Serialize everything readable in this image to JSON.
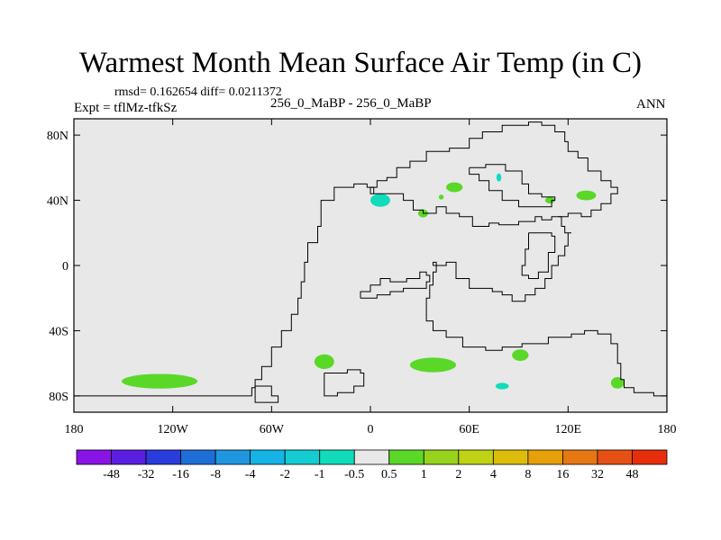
{
  "header": {
    "title": "Warmest Month Mean Surface Air Temp (in C)",
    "stats": "rmsd= 0.162654 diff= 0.0211372",
    "experiment": "Expt = tflMz-tfkSz",
    "subtitle": "256_0_MaBP - 256_0_MaBP",
    "season": "ANN"
  },
  "chart_data": {
    "type": "heatmap",
    "title": "Warmest Month Mean Surface Air Temp (in C)",
    "subtitle": "256_0_MaBP - 256_0_MaBP",
    "projection": "cylindrical equidistant",
    "xlim": [
      -180,
      180
    ],
    "ylim": [
      -90,
      90
    ],
    "x_ticks": [
      {
        "value": -180,
        "label": "180"
      },
      {
        "value": -120,
        "label": "120W"
      },
      {
        "value": -60,
        "label": "60W"
      },
      {
        "value": 0,
        "label": "0"
      },
      {
        "value": 60,
        "label": "60E"
      },
      {
        "value": 120,
        "label": "120E"
      },
      {
        "value": 180,
        "label": "180"
      }
    ],
    "y_ticks": [
      {
        "value": 80,
        "label": "80N"
      },
      {
        "value": 40,
        "label": "40N"
      },
      {
        "value": 0,
        "label": "0"
      },
      {
        "value": -40,
        "label": "40S"
      },
      {
        "value": -80,
        "label": "80S"
      }
    ],
    "background_color": "#e8e8e8",
    "colorbar": {
      "labels": [
        "-48",
        "-32",
        "-16",
        "-8",
        "-4",
        "-2",
        "-1",
        "-0.5",
        "0.5",
        "1",
        "2",
        "4",
        "8",
        "16",
        "32",
        "48"
      ],
      "colors": [
        "#8a14e6",
        "#5a1ee0",
        "#2a3cdc",
        "#1e6ed8",
        "#1e96e0",
        "#14b4e6",
        "#14ccd2",
        "#10dcbc",
        "#e8e8e8",
        "#5ad828",
        "#96d21e",
        "#c0d214",
        "#dcbe0a",
        "#e6a00a",
        "#e67814",
        "#e65014",
        "#e62e0a"
      ]
    },
    "anomalies": [
      {
        "name": "south-pacific",
        "lon": -128,
        "lat": -71,
        "rlon": 23,
        "rlat": 4.5,
        "color": "#5ad828"
      },
      {
        "name": "south-atlantic-west",
        "lon": -28,
        "lat": -59,
        "rlon": 6,
        "rlat": 4.5,
        "color": "#5ad828"
      },
      {
        "name": "south-atlantic-east",
        "lon": 38,
        "lat": -61,
        "rlon": 14,
        "rlat": 4.5,
        "color": "#5ad828"
      },
      {
        "name": "indian-ocean",
        "lon": 91,
        "lat": -55,
        "rlon": 5,
        "rlat": 3.5,
        "color": "#5ad828"
      },
      {
        "name": "australia-east",
        "lon": 150,
        "lat": -72,
        "rlon": 4,
        "rlat": 3.5,
        "color": "#5ad828"
      },
      {
        "name": "southern-ocean-cyan",
        "lon": 80,
        "lat": -74,
        "rlon": 4,
        "rlat": 2,
        "color": "#10dcbc"
      },
      {
        "name": "tethys-west-cyan",
        "lon": 6,
        "lat": 40,
        "rlon": 6,
        "rlat": 4,
        "color": "#10dcbc"
      },
      {
        "name": "north-central",
        "lon": 51,
        "lat": 48,
        "rlon": 5,
        "rlat": 3,
        "color": "#5ad828"
      },
      {
        "name": "north-east-1",
        "lon": 131,
        "lat": 43,
        "rlon": 6,
        "rlat": 3,
        "color": "#5ad828"
      },
      {
        "name": "north-east-2",
        "lon": 109,
        "lat": 40,
        "rlon": 3,
        "rlat": 2,
        "color": "#5ad828"
      },
      {
        "name": "tethys-central",
        "lon": 32,
        "lat": 32,
        "rlon": 3,
        "rlat": 2.5,
        "color": "#5ad828"
      },
      {
        "name": "north-dot",
        "lon": 43,
        "lat": 42,
        "rlon": 1.5,
        "rlat": 1.5,
        "color": "#5ad828"
      },
      {
        "name": "northeast-cyan",
        "lon": 78,
        "lat": 54,
        "rlon": 1.5,
        "rlat": 2.5,
        "color": "#10dcbc"
      }
    ],
    "coastlines": [
      {
        "name": "pangea-main",
        "points": [
          [
            -72,
            -80
          ],
          [
            -72,
            -75
          ],
          [
            -70,
            -70
          ],
          [
            -66,
            -62
          ],
          [
            -60,
            -50
          ],
          [
            -54,
            -40
          ],
          [
            -48,
            -30
          ],
          [
            -44,
            -20
          ],
          [
            -42,
            -10
          ],
          [
            -40,
            2
          ],
          [
            -38,
            14
          ],
          [
            -32,
            24
          ],
          [
            -30,
            40
          ],
          [
            -22,
            48
          ],
          [
            -10,
            50
          ],
          [
            -2,
            48
          ],
          [
            2,
            44
          ],
          [
            12,
            44
          ],
          [
            20,
            40
          ],
          [
            26,
            34
          ],
          [
            32,
            32
          ],
          [
            40,
            36
          ],
          [
            46,
            32
          ],
          [
            54,
            30
          ],
          [
            62,
            24
          ],
          [
            72,
            26
          ],
          [
            78,
            25
          ],
          [
            90,
            27
          ],
          [
            100,
            30
          ],
          [
            104,
            28
          ],
          [
            110,
            30
          ],
          [
            114,
            30
          ],
          [
            116,
            24
          ],
          [
            118,
            20
          ],
          [
            122,
            20
          ],
          [
            120,
            12
          ],
          [
            118,
            6
          ],
          [
            114,
            0
          ],
          [
            110,
            -8
          ],
          [
            106,
            -14
          ],
          [
            100,
            -18
          ],
          [
            94,
            -22
          ],
          [
            86,
            -18
          ],
          [
            80,
            -16
          ],
          [
            74,
            -14
          ],
          [
            60,
            -8
          ],
          [
            52,
            2
          ],
          [
            46,
            0
          ],
          [
            40,
            -4
          ],
          [
            38,
            -12
          ],
          [
            36,
            -20
          ],
          [
            34,
            -26
          ],
          [
            34,
            -34
          ],
          [
            38,
            -40
          ],
          [
            46,
            -44
          ],
          [
            56,
            -50
          ],
          [
            70,
            -52
          ],
          [
            80,
            -50
          ],
          [
            92,
            -48
          ],
          [
            108,
            -44
          ],
          [
            122,
            -42
          ],
          [
            130,
            -40
          ],
          [
            138,
            -42
          ],
          [
            146,
            -48
          ],
          [
            150,
            -60
          ],
          [
            152,
            -70
          ],
          [
            154,
            -75
          ],
          [
            160,
            -78
          ],
          [
            172,
            -80
          ],
          [
            180,
            -80
          ]
        ]
      },
      {
        "name": "pangea-interior",
        "points": [
          [
            -6,
            -20
          ],
          [
            -6,
            -16
          ],
          [
            0,
            -12
          ],
          [
            6,
            -8
          ],
          [
            12,
            -10
          ],
          [
            22,
            -8
          ],
          [
            30,
            -4
          ],
          [
            34,
            -6
          ],
          [
            36,
            -10
          ],
          [
            34,
            -14
          ],
          [
            28,
            -14
          ],
          [
            20,
            -16
          ],
          [
            12,
            -18
          ],
          [
            4,
            -20
          ],
          [
            -6,
            -20
          ]
        ]
      },
      {
        "name": "south-border",
        "points": [
          [
            -180,
            -80
          ],
          [
            -72,
            -80
          ]
        ]
      },
      {
        "name": "laurasia-north",
        "points": [
          [
            2,
            44
          ],
          [
            0,
            48
          ],
          [
            4,
            52
          ],
          [
            10,
            54
          ],
          [
            16,
            60
          ],
          [
            24,
            64
          ],
          [
            34,
            70
          ],
          [
            48,
            72
          ],
          [
            60,
            78
          ],
          [
            68,
            82
          ],
          [
            80,
            86
          ],
          [
            96,
            88
          ],
          [
            104,
            86
          ],
          [
            112,
            82
          ],
          [
            118,
            76
          ],
          [
            120,
            70
          ],
          [
            126,
            66
          ],
          [
            132,
            58
          ],
          [
            140,
            52
          ],
          [
            146,
            48
          ],
          [
            150,
            44
          ],
          [
            146,
            38
          ],
          [
            140,
            34
          ],
          [
            134,
            30
          ],
          [
            128,
            32
          ],
          [
            120,
            30
          ],
          [
            114,
            30
          ]
        ]
      },
      {
        "name": "north-bay",
        "points": [
          [
            60,
            60
          ],
          [
            70,
            62
          ],
          [
            82,
            58
          ],
          [
            92,
            50
          ],
          [
            96,
            44
          ],
          [
            104,
            42
          ],
          [
            112,
            40
          ],
          [
            110,
            36
          ],
          [
            100,
            36
          ],
          [
            90,
            40
          ],
          [
            80,
            46
          ],
          [
            72,
            52
          ],
          [
            66,
            56
          ],
          [
            60,
            60
          ]
        ]
      },
      {
        "name": "east-inland-sea",
        "points": [
          [
            96,
            20
          ],
          [
            104,
            20
          ],
          [
            110,
            18
          ],
          [
            112,
            8
          ],
          [
            108,
            -4
          ],
          [
            102,
            -8
          ],
          [
            96,
            -6
          ],
          [
            92,
            0
          ],
          [
            94,
            10
          ],
          [
            96,
            20
          ]
        ]
      },
      {
        "name": "madagascar-isle",
        "points": [
          [
            -28,
            -66
          ],
          [
            -22,
            -66
          ],
          [
            -14,
            -64
          ],
          [
            -6,
            -66
          ],
          [
            -4,
            -74
          ],
          [
            -10,
            -78
          ],
          [
            -20,
            -80
          ],
          [
            -28,
            -76
          ],
          [
            -28,
            -66
          ]
        ]
      },
      {
        "name": "antarctic-inlet",
        "points": [
          [
            -70,
            -74
          ],
          [
            -64,
            -74
          ],
          [
            -60,
            -80
          ],
          [
            -56,
            -84
          ],
          [
            -64,
            -84
          ],
          [
            -70,
            -80
          ],
          [
            -70,
            -74
          ]
        ]
      },
      {
        "name": "small-isle",
        "points": [
          [
            38,
            0
          ],
          [
            40,
            0
          ],
          [
            40,
            2
          ],
          [
            38,
            2
          ],
          [
            38,
            0
          ]
        ]
      }
    ]
  }
}
